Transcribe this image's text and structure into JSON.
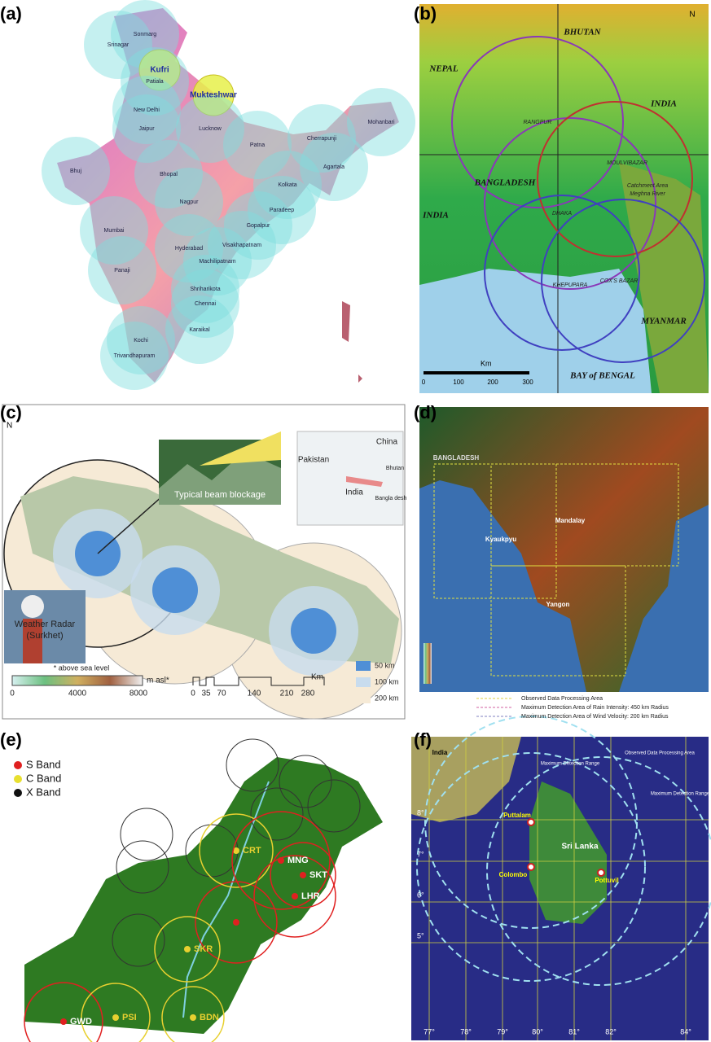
{
  "panels": {
    "a": {
      "label": "(a)",
      "cities": [
        "Srinagar",
        "Sonmarg",
        "Kufri",
        "Patiala",
        "Mukteshwar",
        "New Delhi",
        "Jaipur",
        "Lucknow",
        "Mohanbari",
        "Patna",
        "Cherrapunji",
        "Agartala",
        "Bhuj",
        "Bhopal",
        "Kolkata",
        "Nagpur",
        "Paradeep",
        "Mumbai",
        "Gopalpur",
        "Hyderabad",
        "Visakhapatnam",
        "Machilipatnam",
        "Panaji",
        "Shriharikota",
        "Chennai",
        "Karaikal",
        "Kochi",
        "Trivandhapuram"
      ]
    },
    "b": {
      "label": "(b)",
      "regions": [
        "NEPAL",
        "BHUTAN",
        "INDIA",
        "BANGLADESH",
        "INDIA",
        "MYANMAR",
        "BAY of BENGAL"
      ],
      "sites": [
        "RANGPUR",
        "MOULVIBAZAR",
        "DHAKA",
        "KHEPUPARA",
        "COX'S BAZAR",
        "Catchment Area",
        "Meghna River"
      ],
      "north": "N",
      "scale_unit": "Km",
      "scale": [
        "0",
        "100",
        "200",
        "300"
      ]
    },
    "c": {
      "label": "(c)",
      "north": "N",
      "inset_title": "Typical beam blockage",
      "countries": [
        "China",
        "Pakistan",
        "India",
        "Bhutan",
        "Bangla desh"
      ],
      "photo_caption": [
        "Weather Radar",
        "(Surkhet)"
      ],
      "elev_note": "* above sea level",
      "elev_unit": "m asl*",
      "elev_ticks": [
        "0",
        "4000",
        "8000"
      ],
      "dist_unit": "Km",
      "dist_ticks": [
        "0",
        "35",
        "70",
        "140",
        "210",
        "280"
      ],
      "legend": [
        "50 km",
        "100 km",
        "200 km"
      ]
    },
    "d": {
      "label": "(d)",
      "places": [
        "BANGLADESH",
        "Mandalay",
        "Kyaukpyu",
        "Yangon"
      ],
      "legend": [
        "Observed Data Processing Area",
        "Maximum Detection Area of Rain Intensity: 450 km Radius",
        "Maximum Detection Area of Wind Velocity: 200 km Radius"
      ]
    },
    "e": {
      "label": "(e)",
      "legend": [
        "S Band",
        "C Band",
        "X Band"
      ],
      "sites": [
        "CRT",
        "MNG",
        "SKT",
        "LHR",
        "SKR",
        "GWD",
        "PSI",
        "BDN"
      ]
    },
    "f": {
      "label": "(f)",
      "places": [
        "India",
        "Puttalam",
        "Sri Lanka",
        "Colombo",
        "Pottuvil"
      ],
      "lat_ticks": [
        "8°",
        "7°",
        "6°",
        "5°"
      ],
      "lon_ticks": [
        "77°",
        "78°",
        "79°",
        "80°",
        "81°",
        "82°",
        "84°"
      ],
      "notes": [
        "Observed Data Processing Area",
        "Maximum Detection Range",
        "Maximum Detection Range"
      ]
    }
  }
}
